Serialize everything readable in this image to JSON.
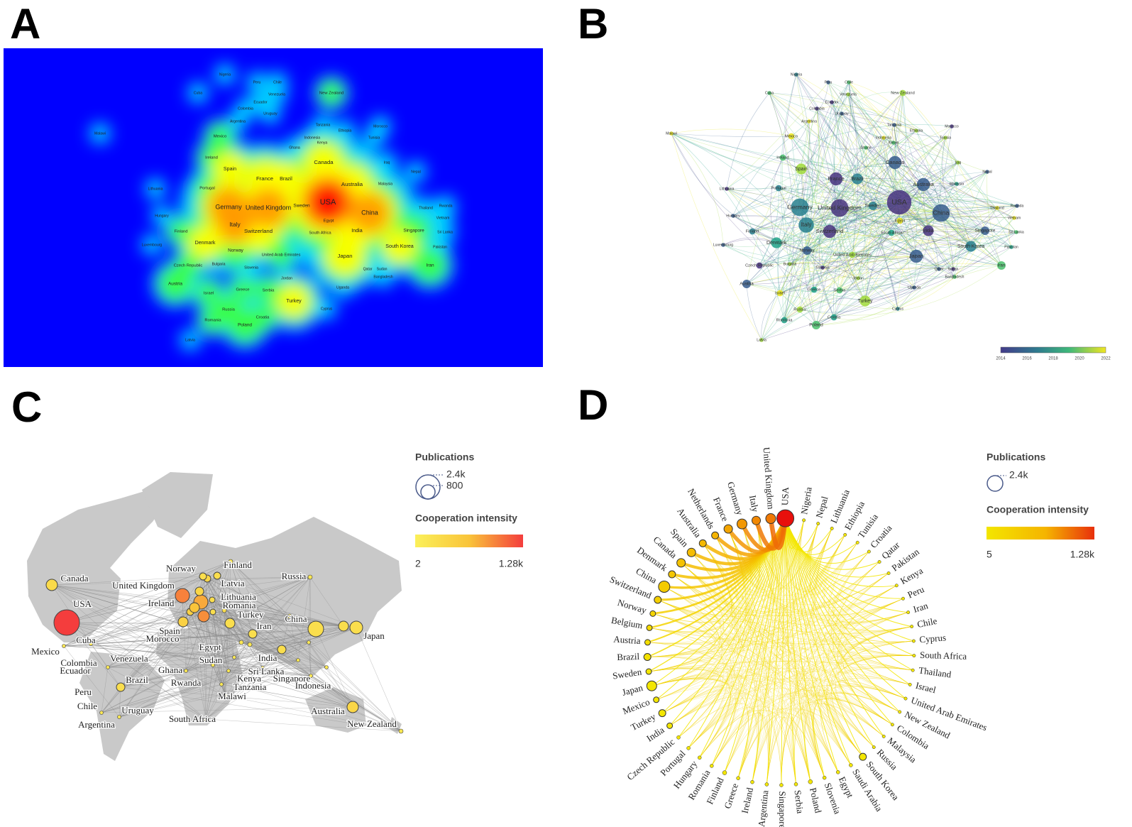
{
  "panels": [
    {
      "label": "A",
      "countries": [
        "Nigeria",
        "Peru",
        "Chile",
        "Cuba",
        "Venezuela",
        "New Zealand",
        "Ecuador",
        "Colombia",
        "Uruguay",
        "Tanzania",
        "Argentina",
        "Ethiopia",
        "Morocco",
        "Malawi",
        "Mexico",
        "Indonesia",
        "Tunisia",
        "Kenya",
        "Ghana",
        "Ireland",
        "Iraq",
        "Canada",
        "Spain",
        "Nepal",
        "France",
        "Brazil",
        "Australia",
        "Malaysia",
        "Portugal",
        "Lithuania",
        "Sweden",
        "USA",
        "Germany",
        "United Kingdom",
        "China",
        "Thailand",
        "Rwanda",
        "Hungary",
        "Egypt",
        "Vietnam",
        "Italy",
        "Finland",
        "Switzerland",
        "South Africa",
        "India",
        "Singapore",
        "Sri Lanka",
        "Denmark",
        "Luxembourg",
        "Norway",
        "South Korea",
        "Pakistan",
        "United Arab Emirates",
        "Japan",
        "Czech Republic",
        "Bulgaria",
        "Slovenia",
        "Iran",
        "Qatar",
        "Sudan",
        "Jordan",
        "Bangladesh",
        "Austria",
        "Serbia",
        "Greece",
        "Uganda",
        "Israel",
        "Turkey",
        "Cyprus",
        "Russia",
        "Croatia",
        "Romania",
        "Poland",
        "Latvia"
      ]
    },
    {
      "label": "B",
      "countries": [
        "Nigeria",
        "Peru",
        "Chile",
        "Cuba",
        "Venezuela",
        "New Zealand",
        "Ecuador",
        "Colombia",
        "Uruguay",
        "Tanzania",
        "Argentina",
        "Ethiopia",
        "Morocco",
        "Malawi",
        "Mexico",
        "Indonesia",
        "Tunisia",
        "Kenya",
        "Ghana",
        "Ireland",
        "Iraq",
        "Canada",
        "Spain",
        "Nepal",
        "France",
        "Brazil",
        "Australia",
        "Malaysia",
        "Portugal",
        "Lithuania",
        "Sweden",
        "USA",
        "Germany",
        "United Kingdom",
        "China",
        "Thailand",
        "Rwanda",
        "Hungary",
        "Egypt",
        "Vietnam",
        "Italy",
        "Finland",
        "Switzerland",
        "South Africa",
        "India",
        "Singapore",
        "Sri Lanka",
        "Denmark",
        "Luxembourg",
        "Norway",
        "South Korea",
        "Pakistan",
        "United Arab Emirates",
        "Japan",
        "Czech Republic",
        "Bulgaria",
        "Slovenia",
        "Iran",
        "Qatar",
        "Sudan",
        "Jordan",
        "Bangladesh",
        "Austria",
        "Serbia",
        "Greece",
        "Uganda",
        "Israel",
        "Turkey",
        "Cyprus",
        "Russia",
        "Croatia",
        "Romania",
        "Poland",
        "Latvia"
      ],
      "colorbar_ticks": [
        "2014",
        "2016",
        "2018",
        "2020",
        "2022"
      ]
    },
    {
      "label": "C",
      "countries": [
        "Canada",
        "United Kingdom",
        "Norway",
        "Finland",
        "Russia",
        "Latvia",
        "Ireland",
        "Lithuania",
        "Romania",
        "USA",
        "Turkey",
        "China",
        "Iran",
        "Spain",
        "Morocco",
        "Japan",
        "Egypt",
        "Cuba",
        "Mexico",
        "India",
        "Venezuela",
        "Colombia",
        "Sudan",
        "Ecuador",
        "Ghana",
        "Sri Lanka",
        "Singapore",
        "Kenya",
        "Rwanda",
        "Indonesia",
        "Tanzania",
        "Brazil",
        "Peru",
        "Malawi",
        "Chile",
        "Uruguay",
        "Argentina",
        "South Africa",
        "Australia",
        "New Zealand"
      ],
      "legend": {
        "size_title": "Publications",
        "size_labels": [
          "2.4k",
          "800"
        ],
        "color_title": "Cooperation intensity",
        "color_labels": [
          "2",
          "1.28k"
        ]
      }
    },
    {
      "label": "D",
      "countries": [
        "USA",
        "United Kingdom",
        "Italy",
        "Germany",
        "France",
        "Netherlands",
        "Australia",
        "Spain",
        "Canada",
        "Denmark",
        "China",
        "Switzerland",
        "Norway",
        "Belgium",
        "Austria",
        "Brazil",
        "Sweden",
        "Japan",
        "Mexico",
        "Turkey",
        "India",
        "Czech Republic",
        "Portugal",
        "Hungary",
        "Romania",
        "Finland",
        "Greece",
        "Ireland",
        "Argentina",
        "Singapore",
        "Serbia",
        "Poland",
        "Slovenia",
        "Egypt",
        "Saudi Arabia",
        "South Korea",
        "Russia",
        "Malaysia",
        "Colombia",
        "New Zealand",
        "United Arab Emirates",
        "Israel",
        "Thailand",
        "South Africa",
        "Cyprus",
        "Chile",
        "Iran",
        "Peru",
        "Kenya",
        "Pakistan",
        "Qatar",
        "Croatia",
        "Tunisia",
        "Ethiopia",
        "Lithuania",
        "Nepal",
        "Nigeria"
      ],
      "legend": {
        "size_title": "Publications",
        "size_labels": [
          "2.4k"
        ],
        "color_title": "Cooperation intensity",
        "color_labels": [
          "5",
          "1.28k"
        ]
      }
    }
  ]
}
